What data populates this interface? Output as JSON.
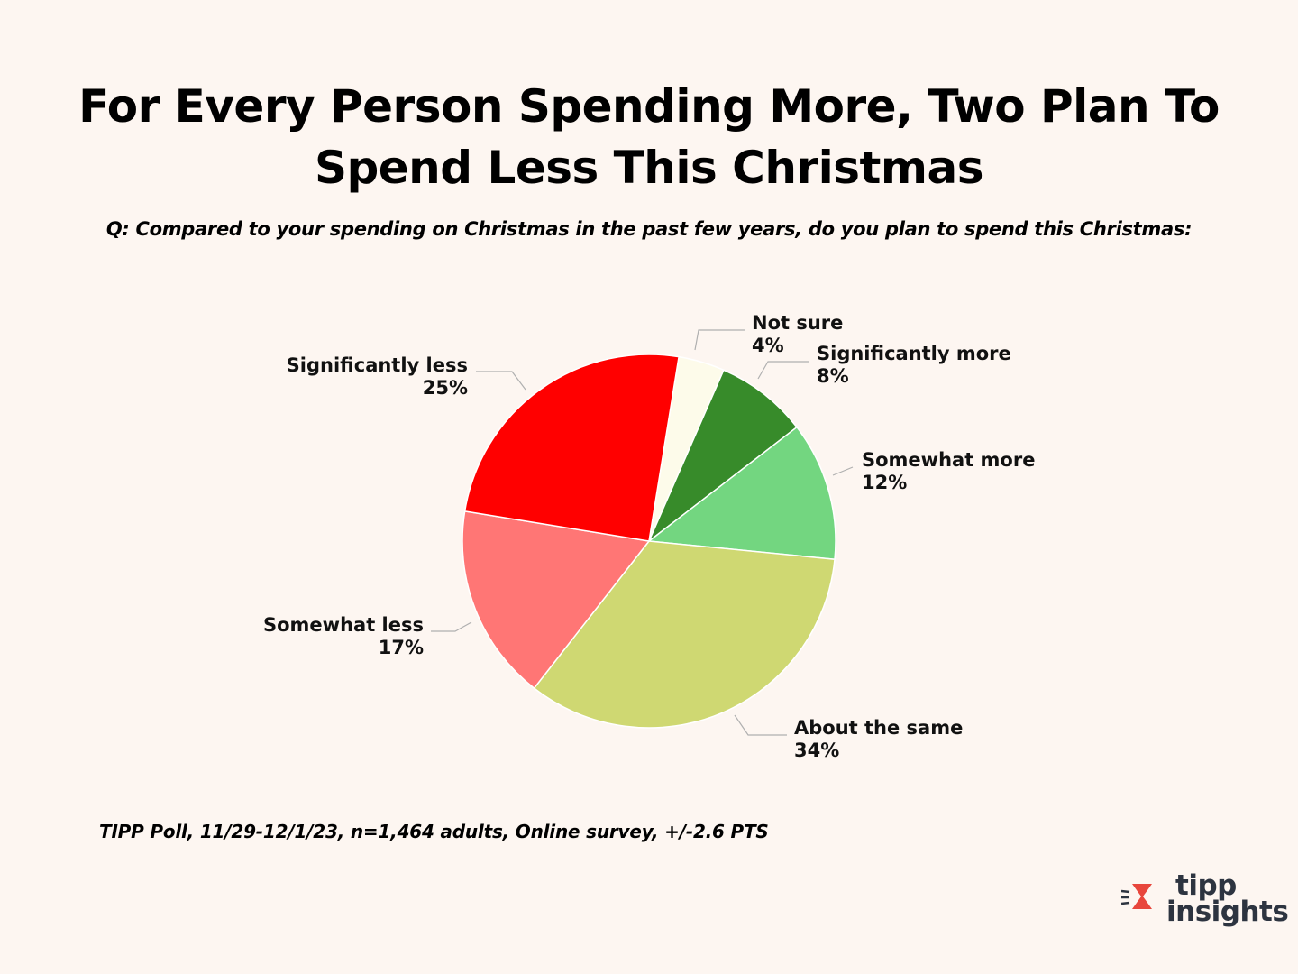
{
  "title_line1": "For Every Person Spending More, Two Plan To",
  "title_line2": "Spend Less This Christmas",
  "question": "Q: Compared to your spending on Christmas in the past few years, do you plan to spend this Christmas:",
  "source": "TIPP Poll, 11/29-12/1/23, n=1,464 adults, Online survey, +/-2.6 PTS",
  "logo": {
    "line1": "tipp",
    "line2": "insights",
    "accent_color": "#e8463c",
    "text_color": "#2d3440"
  },
  "chart_data": {
    "type": "pie",
    "title": "For Every Person Spending More, Two Plan To Spend Less This Christmas",
    "categories": [
      "Not sure",
      "Significantly more",
      "Somewhat more",
      "About the same",
      "Somewhat less",
      "Significantly less"
    ],
    "values": [
      4,
      8,
      12,
      34,
      17,
      25
    ],
    "value_labels": [
      "4%",
      "8%",
      "12%",
      "34%",
      "17%",
      "25%"
    ],
    "colors": [
      "#fdfbea",
      "#378b2a",
      "#73d680",
      "#cfd872",
      "#ff7675",
      "#ff0000"
    ],
    "data_labels": "outside with leader lines",
    "legend": "none"
  }
}
